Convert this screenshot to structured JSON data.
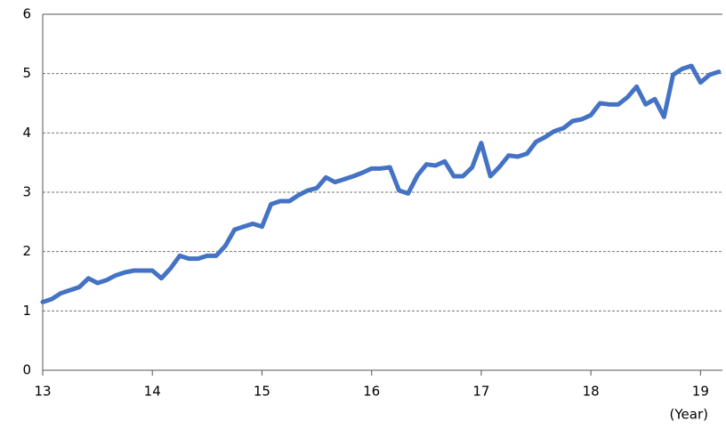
{
  "chart_data": {
    "type": "line",
    "x_label": "(Year)",
    "x": [
      13,
      13.083,
      13.167,
      13.25,
      13.333,
      13.417,
      13.5,
      13.583,
      13.667,
      13.75,
      13.833,
      13.917,
      14,
      14.083,
      14.167,
      14.25,
      14.333,
      14.417,
      14.5,
      14.583,
      14.667,
      14.75,
      14.833,
      14.917,
      15,
      15.083,
      15.167,
      15.25,
      15.333,
      15.417,
      15.5,
      15.583,
      15.667,
      15.75,
      15.833,
      15.917,
      16,
      16.083,
      16.167,
      16.25,
      16.333,
      16.417,
      16.5,
      16.583,
      16.667,
      16.75,
      16.833,
      16.917,
      17,
      17.083,
      17.167,
      17.25,
      17.333,
      17.417,
      17.5,
      17.583,
      17.667,
      17.75,
      17.833,
      17.917,
      18,
      18.083,
      18.167,
      18.25,
      18.333,
      18.417,
      18.5,
      18.583,
      18.667,
      18.75,
      18.833,
      18.917,
      19,
      19.083,
      19.167
    ],
    "series": [
      {
        "color": "#4472c4",
        "values": [
          1.15,
          1.2,
          1.3,
          1.35,
          1.4,
          1.55,
          1.47,
          1.52,
          1.6,
          1.65,
          1.68,
          1.68,
          1.68,
          1.55,
          1.72,
          1.93,
          1.88,
          1.88,
          1.93,
          1.93,
          2.1,
          2.37,
          2.42,
          2.47,
          2.42,
          2.8,
          2.85,
          2.85,
          2.95,
          3.03,
          3.07,
          3.25,
          3.17,
          3.22,
          3.27,
          3.33,
          3.4,
          3.4,
          3.42,
          3.03,
          2.98,
          3.28,
          3.47,
          3.45,
          3.52,
          3.27,
          3.27,
          3.42,
          3.83,
          3.27,
          3.43,
          3.62,
          3.6,
          3.65,
          3.85,
          3.93,
          4.03,
          4.08,
          4.2,
          4.23,
          4.3,
          4.5,
          4.48,
          4.48,
          4.6,
          4.78,
          4.48,
          4.57,
          4.27,
          4.98,
          5.08,
          5.13,
          4.85,
          4.98,
          5.03
        ]
      }
    ],
    "xlim": [
      13,
      19.2
    ],
    "xticks": [
      13,
      14,
      15,
      16,
      17,
      18,
      19
    ],
    "ylim": [
      0,
      6
    ],
    "yticks": [
      0,
      1,
      2,
      3,
      4,
      5,
      6
    ],
    "grid": true
  }
}
